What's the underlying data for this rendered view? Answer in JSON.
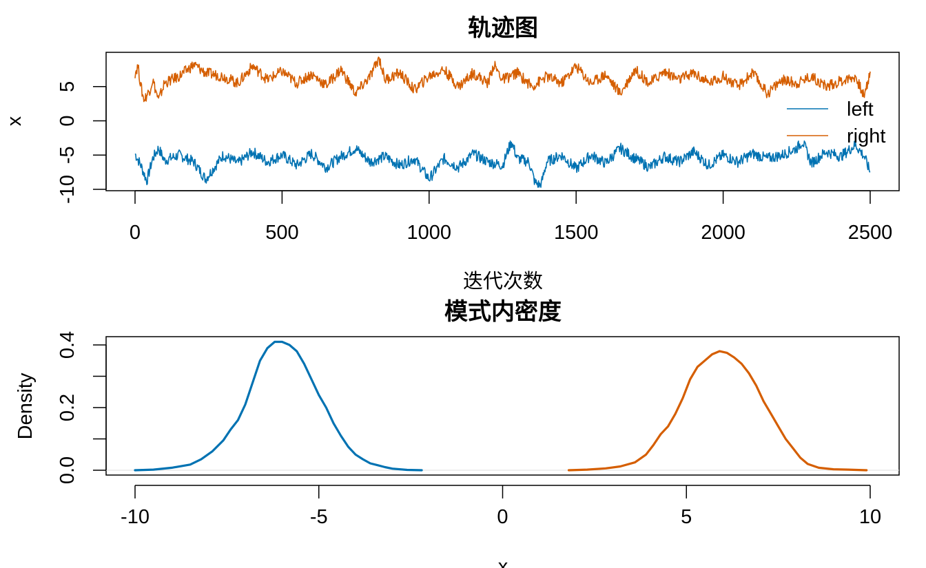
{
  "colors": {
    "left": "#0072B2",
    "right": "#D55E00",
    "axis": "#000000",
    "zero_line": "#DDDDDD"
  },
  "chart_data": [
    {
      "type": "line",
      "title": "轨迹图",
      "xlabel": "迭代次数",
      "ylabel": "x",
      "xlim": [
        0,
        2500
      ],
      "ylim": [
        -10,
        10
      ],
      "x_ticks": [
        "0",
        "500",
        "1000",
        "1500",
        "2000",
        "2500"
      ],
      "y_ticks": [
        "-10",
        "-5",
        "0",
        "5"
      ],
      "y_tick_values": [
        -10,
        -5,
        0,
        5
      ],
      "legend": {
        "position": "right",
        "entries": [
          "left",
          "right"
        ]
      },
      "series": [
        {
          "name": "left",
          "x": [
            0,
            20,
            40,
            60,
            80,
            100,
            150,
            200,
            240,
            300,
            350,
            400,
            450,
            500,
            550,
            600,
            650,
            700,
            750,
            800,
            850,
            900,
            950,
            1000,
            1050,
            1100,
            1150,
            1200,
            1250,
            1280,
            1300,
            1340,
            1360,
            1380,
            1400,
            1450,
            1500,
            1550,
            1600,
            1650,
            1700,
            1750,
            1800,
            1850,
            1900,
            1950,
            2000,
            2050,
            2100,
            2150,
            2200,
            2250,
            2270,
            2300,
            2350,
            2400,
            2450,
            2480,
            2500
          ],
          "values": [
            -4.8,
            -6.5,
            -8.8,
            -5.5,
            -4.0,
            -5.8,
            -5.0,
            -6.0,
            -8.5,
            -5.0,
            -6.2,
            -4.5,
            -6.0,
            -5.0,
            -6.5,
            -4.8,
            -6.8,
            -5.2,
            -4.0,
            -6.0,
            -5.2,
            -6.5,
            -5.5,
            -8.5,
            -5.5,
            -6.8,
            -4.8,
            -6.0,
            -6.5,
            -3.0,
            -5.5,
            -6.0,
            -9.0,
            -9.5,
            -6.0,
            -5.0,
            -7.0,
            -5.0,
            -6.2,
            -4.0,
            -5.5,
            -6.8,
            -5.2,
            -6.0,
            -4.5,
            -6.5,
            -5.0,
            -6.0,
            -4.8,
            -5.5,
            -5.0,
            -4.0,
            -3.0,
            -6.2,
            -4.5,
            -5.2,
            -3.5,
            -5.2,
            -7.5
          ]
        },
        {
          "name": "right",
          "x": [
            0,
            10,
            20,
            30,
            50,
            60,
            80,
            100,
            150,
            200,
            240,
            300,
            350,
            400,
            450,
            500,
            550,
            600,
            650,
            700,
            750,
            800,
            830,
            850,
            900,
            950,
            1000,
            1050,
            1100,
            1150,
            1200,
            1220,
            1250,
            1300,
            1350,
            1400,
            1450,
            1500,
            1550,
            1600,
            1650,
            1700,
            1750,
            1800,
            1850,
            1900,
            1950,
            2000,
            2050,
            2100,
            2150,
            2200,
            2250,
            2300,
            2350,
            2400,
            2450,
            2480,
            2500
          ],
          "values": [
            7.0,
            8.0,
            5.0,
            3.0,
            4.5,
            6.0,
            3.0,
            5.5,
            6.5,
            8.2,
            7.0,
            6.5,
            5.5,
            8.0,
            6.0,
            7.2,
            5.5,
            6.8,
            5.2,
            7.5,
            4.0,
            6.5,
            9.2,
            6.0,
            7.0,
            4.5,
            6.5,
            7.5,
            5.0,
            7.0,
            5.5,
            8.2,
            6.0,
            7.0,
            5.0,
            6.5,
            5.5,
            8.0,
            5.5,
            6.8,
            4.0,
            7.5,
            5.5,
            7.2,
            6.0,
            7.0,
            5.5,
            6.5,
            5.0,
            7.0,
            4.0,
            6.0,
            5.5,
            6.5,
            5.0,
            5.8,
            6.5,
            3.5,
            7.2
          ]
        }
      ]
    },
    {
      "type": "line",
      "title": "模式内密度",
      "xlabel": "x",
      "ylabel": "Density",
      "xlim": [
        -10,
        10
      ],
      "ylim": [
        0,
        0.4
      ],
      "x_ticks": [
        "-10",
        "-5",
        "0",
        "5",
        "10"
      ],
      "x_tick_values": [
        -10,
        -5,
        0,
        5,
        10
      ],
      "y_ticks": [
        "0.0",
        "0.2",
        "0.4"
      ],
      "y_tick_values": [
        0.0,
        0.1,
        0.2,
        0.3,
        0.4
      ],
      "y_tick_labeled": [
        true,
        false,
        true,
        false,
        true
      ],
      "series": [
        {
          "name": "left",
          "x": [
            -10,
            -9.5,
            -9.0,
            -8.5,
            -8.2,
            -7.9,
            -7.6,
            -7.4,
            -7.2,
            -7.0,
            -6.8,
            -6.6,
            -6.4,
            -6.2,
            -6.0,
            -5.8,
            -5.6,
            -5.4,
            -5.2,
            -5.0,
            -4.8,
            -4.6,
            -4.4,
            -4.2,
            -4.0,
            -3.8,
            -3.6,
            -3.4,
            -3.2,
            -3.0,
            -2.6,
            -2.2
          ],
          "values": [
            0.0,
            0.002,
            0.008,
            0.018,
            0.035,
            0.06,
            0.095,
            0.13,
            0.16,
            0.21,
            0.28,
            0.35,
            0.39,
            0.41,
            0.41,
            0.4,
            0.38,
            0.34,
            0.29,
            0.24,
            0.2,
            0.15,
            0.11,
            0.075,
            0.05,
            0.035,
            0.022,
            0.016,
            0.01,
            0.005,
            0.001,
            0.0
          ]
        },
        {
          "name": "right",
          "x": [
            1.8,
            2.3,
            2.8,
            3.2,
            3.6,
            3.9,
            4.1,
            4.3,
            4.5,
            4.7,
            4.9,
            5.1,
            5.3,
            5.5,
            5.7,
            5.9,
            6.1,
            6.3,
            6.5,
            6.7,
            6.9,
            7.1,
            7.3,
            7.5,
            7.7,
            7.9,
            8.1,
            8.3,
            8.6,
            9.0,
            9.4,
            9.9
          ],
          "values": [
            0.0,
            0.002,
            0.006,
            0.012,
            0.025,
            0.05,
            0.08,
            0.115,
            0.14,
            0.18,
            0.23,
            0.29,
            0.33,
            0.35,
            0.37,
            0.38,
            0.375,
            0.36,
            0.34,
            0.31,
            0.27,
            0.22,
            0.18,
            0.14,
            0.1,
            0.07,
            0.04,
            0.02,
            0.008,
            0.003,
            0.002,
            0.0
          ]
        }
      ]
    }
  ]
}
